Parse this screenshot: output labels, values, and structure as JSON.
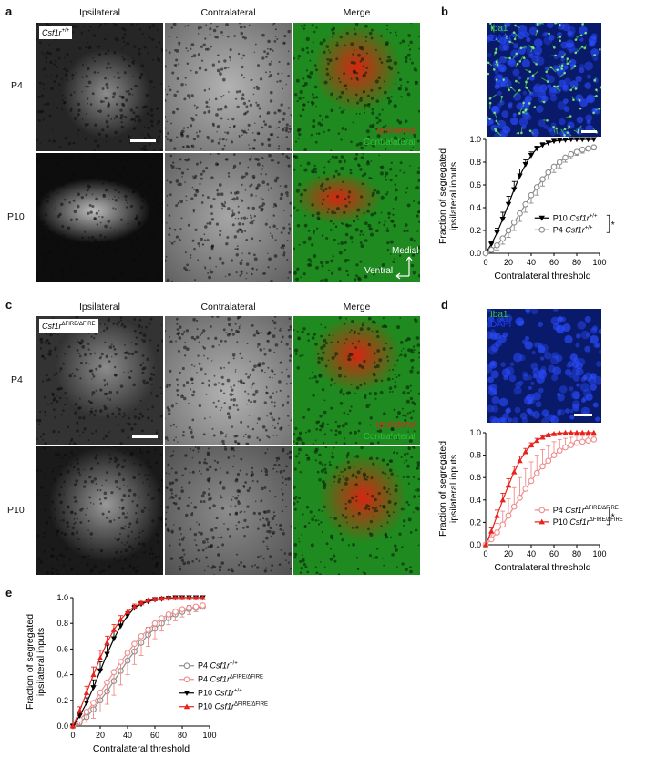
{
  "panels": {
    "a": {
      "label": "a",
      "columns": [
        "Ipsilateral",
        "Contralateral",
        "Merge"
      ],
      "rows": [
        "P4",
        "P10"
      ],
      "genotype_base": "Csf1r",
      "genotype_sup": "+/+",
      "merge_ipsi": "Ipsilateral",
      "merge_contra": "Contralateral",
      "axis_medial": "Medial",
      "axis_ventral": "Ventral"
    },
    "b": {
      "label": "b",
      "stain1": "Iba1",
      "stain2": "DAPI"
    },
    "c": {
      "label": "c",
      "columns": [
        "Ipsilateral",
        "Contralateral",
        "Merge"
      ],
      "rows": [
        "P4",
        "P10"
      ],
      "genotype_base": "Csf1r",
      "genotype_sup": "ΔFIRE/ΔFIRE",
      "merge_ipsi": "Ipsilateral",
      "merge_contra": "Contralateral"
    },
    "d": {
      "label": "d",
      "stain1": "Iba1",
      "stain2": "DAPI"
    },
    "e": {
      "label": "e"
    }
  },
  "colors": {
    "ipsilateral": "#e8221b",
    "contralateral": "#2ec33a",
    "iba1": "#3cc83c",
    "dapi": "#1e3cff",
    "p10_wt": "#000000",
    "p4_wt": "#8c8c8c",
    "p10_ko": "#e8221b",
    "p4_ko": "#f08c8c"
  },
  "chart_data": [
    {
      "type": "line",
      "panel": "b",
      "xlabel": "Contralateral threshold",
      "ylabel": "Fraction of segregated ipsilateral inputs",
      "xlim": [
        0,
        100
      ],
      "ylim": [
        0,
        1.0
      ],
      "xticks": [
        0,
        20,
        40,
        60,
        80,
        100
      ],
      "yticks": [
        0,
        0.2,
        0.4,
        0.6,
        0.8,
        1.0
      ],
      "significance": "*",
      "legend_position": "right",
      "x": [
        0,
        5,
        10,
        15,
        20,
        25,
        30,
        35,
        40,
        45,
        50,
        55,
        60,
        65,
        70,
        75,
        80,
        85,
        90,
        95
      ],
      "series": [
        {
          "name": "P10 Csf1r+/+",
          "genotype": "Csf1r",
          "sup": "+/+",
          "age": "P10",
          "marker": "triangle-down",
          "color": "#000000",
          "values": [
            0,
            0.08,
            0.18,
            0.3,
            0.43,
            0.56,
            0.68,
            0.78,
            0.86,
            0.92,
            0.95,
            0.97,
            0.985,
            0.99,
            0.995,
            1.0,
            1.0,
            1.0,
            1.0,
            1.0
          ],
          "errors": [
            0,
            0.02,
            0.04,
            0.06,
            0.07,
            0.07,
            0.06,
            0.04,
            0.03,
            0.02,
            0.02,
            0.01,
            0.01,
            0.005,
            0.005,
            0,
            0,
            0,
            0,
            0
          ]
        },
        {
          "name": "P4 Csf1r+/+",
          "genotype": "Csf1r",
          "sup": "+/+",
          "age": "P4",
          "marker": "circle-open",
          "color": "#8c8c8c",
          "values": [
            0,
            0.03,
            0.07,
            0.13,
            0.2,
            0.27,
            0.35,
            0.43,
            0.51,
            0.58,
            0.65,
            0.71,
            0.76,
            0.8,
            0.84,
            0.87,
            0.89,
            0.91,
            0.92,
            0.93
          ],
          "errors": [
            0,
            0.02,
            0.04,
            0.05,
            0.06,
            0.07,
            0.07,
            0.07,
            0.07,
            0.07,
            0.06,
            0.06,
            0.05,
            0.05,
            0.04,
            0.04,
            0.03,
            0.03,
            0.02,
            0.02
          ]
        }
      ]
    },
    {
      "type": "line",
      "panel": "d",
      "xlabel": "Contralateral threshold",
      "ylabel": "Fraction of segregated ipsilateral inputs",
      "xlim": [
        0,
        100
      ],
      "ylim": [
        0,
        1.0
      ],
      "xticks": [
        0,
        20,
        40,
        60,
        80,
        100
      ],
      "yticks": [
        0,
        0.2,
        0.4,
        0.6,
        0.8,
        1.0
      ],
      "significance": "*",
      "legend_position": "right",
      "x": [
        0,
        5,
        10,
        15,
        20,
        25,
        30,
        35,
        40,
        45,
        50,
        55,
        60,
        65,
        70,
        75,
        80,
        85,
        90,
        95
      ],
      "series": [
        {
          "name": "P4 Csf1rΔFIRE/ΔFIRE",
          "genotype": "Csf1r",
          "sup": "ΔFIRE/ΔFIRE",
          "age": "P4",
          "marker": "circle-open",
          "color": "#f08c8c",
          "values": [
            0,
            0.05,
            0.11,
            0.18,
            0.26,
            0.34,
            0.42,
            0.5,
            0.57,
            0.64,
            0.7,
            0.75,
            0.8,
            0.84,
            0.87,
            0.89,
            0.91,
            0.92,
            0.93,
            0.94
          ],
          "errors": [
            0,
            0.04,
            0.08,
            0.12,
            0.15,
            0.17,
            0.18,
            0.18,
            0.17,
            0.16,
            0.15,
            0.13,
            0.12,
            0.1,
            0.08,
            0.07,
            0.06,
            0.05,
            0.04,
            0.03
          ]
        },
        {
          "name": "P10 Csf1rΔFIRE/ΔFIRE",
          "genotype": "Csf1r",
          "sup": "ΔFIRE/ΔFIRE",
          "age": "P10",
          "marker": "triangle-up",
          "color": "#e8221b",
          "values": [
            0,
            0.12,
            0.26,
            0.4,
            0.53,
            0.65,
            0.75,
            0.83,
            0.89,
            0.93,
            0.96,
            0.98,
            0.99,
            0.995,
            1.0,
            1.0,
            1.0,
            1.0,
            1.0,
            1.0
          ],
          "errors": [
            0,
            0.03,
            0.05,
            0.06,
            0.06,
            0.05,
            0.04,
            0.03,
            0.02,
            0.02,
            0.01,
            0.01,
            0.005,
            0.005,
            0,
            0,
            0,
            0,
            0,
            0
          ]
        }
      ]
    },
    {
      "type": "line",
      "panel": "e",
      "xlabel": "Contralateral threshold",
      "ylabel": "Fraction of segregated ipsilateral inputs",
      "xlim": [
        0,
        100
      ],
      "ylim": [
        0,
        1.0
      ],
      "xticks": [
        0,
        20,
        40,
        60,
        80,
        100
      ],
      "yticks": [
        0,
        0.2,
        0.4,
        0.6,
        0.8,
        1.0
      ],
      "legend_position": "right",
      "x": [
        0,
        5,
        10,
        15,
        20,
        25,
        30,
        35,
        40,
        45,
        50,
        55,
        60,
        65,
        70,
        75,
        80,
        85,
        90,
        95
      ],
      "series": [
        {
          "name": "P4 Csf1r+/+",
          "genotype": "Csf1r",
          "sup": "+/+",
          "age": "P4",
          "marker": "circle-open",
          "color": "#8c8c8c",
          "values": [
            0,
            0.03,
            0.07,
            0.13,
            0.2,
            0.27,
            0.35,
            0.43,
            0.51,
            0.58,
            0.65,
            0.71,
            0.76,
            0.8,
            0.84,
            0.87,
            0.89,
            0.91,
            0.92,
            0.93
          ],
          "errors": [
            0,
            0.02,
            0.04,
            0.05,
            0.06,
            0.07,
            0.07,
            0.07,
            0.07,
            0.07,
            0.06,
            0.06,
            0.05,
            0.05,
            0.04,
            0.04,
            0.03,
            0.03,
            0.02,
            0.02
          ]
        },
        {
          "name": "P4 Csf1rΔFIRE/ΔFIRE",
          "genotype": "Csf1r",
          "sup": "ΔFIRE/ΔFIRE",
          "age": "P4",
          "marker": "circle-open",
          "color": "#f08c8c",
          "values": [
            0,
            0.05,
            0.11,
            0.18,
            0.26,
            0.34,
            0.42,
            0.5,
            0.57,
            0.64,
            0.7,
            0.75,
            0.8,
            0.84,
            0.87,
            0.89,
            0.91,
            0.92,
            0.93,
            0.94
          ],
          "errors": [
            0,
            0.04,
            0.08,
            0.12,
            0.15,
            0.17,
            0.18,
            0.18,
            0.17,
            0.16,
            0.15,
            0.13,
            0.12,
            0.1,
            0.08,
            0.07,
            0.06,
            0.05,
            0.04,
            0.03
          ]
        },
        {
          "name": "P10 Csf1r+/+",
          "genotype": "Csf1r",
          "sup": "+/+",
          "age": "P10",
          "marker": "triangle-down",
          "color": "#000000",
          "values": [
            0,
            0.08,
            0.18,
            0.3,
            0.43,
            0.56,
            0.68,
            0.78,
            0.86,
            0.92,
            0.95,
            0.97,
            0.985,
            0.99,
            0.995,
            1.0,
            1.0,
            1.0,
            1.0,
            1.0
          ],
          "errors": [
            0,
            0.02,
            0.04,
            0.06,
            0.07,
            0.07,
            0.06,
            0.04,
            0.03,
            0.02,
            0.02,
            0.01,
            0.01,
            0.005,
            0.005,
            0,
            0,
            0,
            0,
            0
          ]
        },
        {
          "name": "P10 Csf1rΔFIRE/ΔFIRE",
          "genotype": "Csf1r",
          "sup": "ΔFIRE/ΔFIRE",
          "age": "P10",
          "marker": "triangle-up",
          "color": "#e8221b",
          "values": [
            0,
            0.12,
            0.26,
            0.4,
            0.53,
            0.65,
            0.75,
            0.83,
            0.89,
            0.93,
            0.96,
            0.98,
            0.99,
            0.995,
            1.0,
            1.0,
            1.0,
            1.0,
            1.0,
            1.0
          ],
          "errors": [
            0,
            0.03,
            0.05,
            0.06,
            0.06,
            0.05,
            0.04,
            0.03,
            0.02,
            0.02,
            0.01,
            0.01,
            0.005,
            0.005,
            0,
            0,
            0,
            0,
            0,
            0
          ]
        }
      ]
    }
  ]
}
